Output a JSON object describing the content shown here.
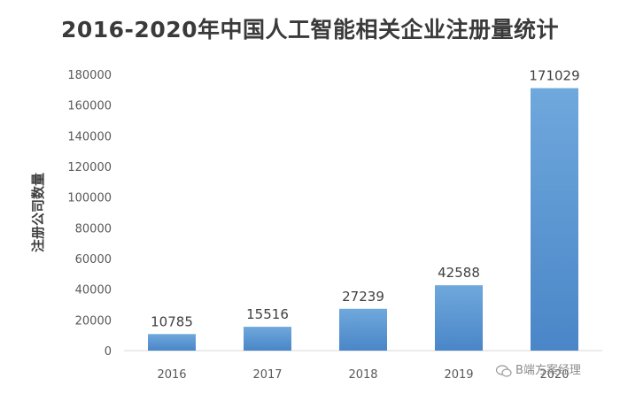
{
  "chart_data": {
    "type": "bar",
    "title": "2016-2020年中国人工智能相关企业注册量统计",
    "ylabel": "注册公司数量",
    "xlabel": "",
    "categories": [
      "2016",
      "2017",
      "2018",
      "2019",
      "2020"
    ],
    "values": [
      10785,
      15516,
      27239,
      42588,
      171029
    ],
    "ylim": [
      0,
      180000
    ],
    "yticks": [
      0,
      20000,
      40000,
      60000,
      80000,
      100000,
      120000,
      140000,
      160000,
      180000
    ],
    "grid": false,
    "legend": "none",
    "bar_color": "#5b9bd5"
  },
  "watermark": {
    "text": "B端方案经理",
    "icon": "wechat-bubble-icon"
  }
}
